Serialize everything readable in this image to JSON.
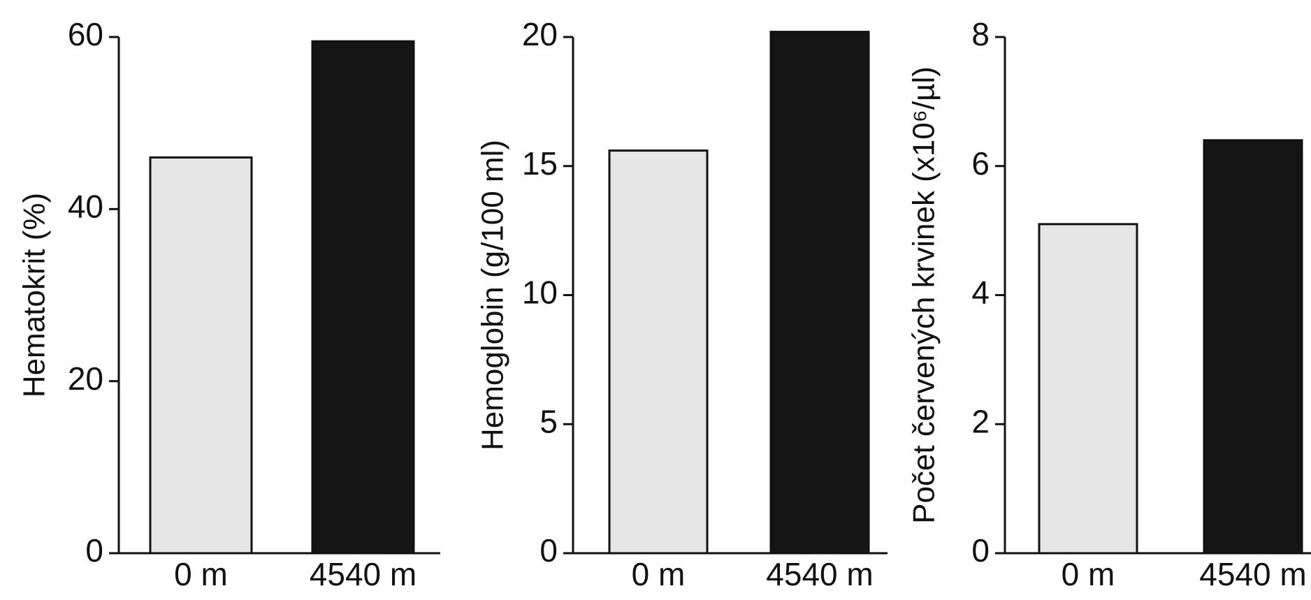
{
  "chart_data": [
    {
      "type": "bar",
      "categories": [
        "0 m",
        "4540 m"
      ],
      "values": [
        46,
        59.5
      ],
      "ylabel": "Hematokrit (%)",
      "ylim": [
        0,
        60
      ],
      "yticks": [
        "0",
        "20",
        "40",
        "60"
      ],
      "colors": [
        "#e6e6e6",
        "#151515"
      ],
      "grid": false
    },
    {
      "type": "bar",
      "categories": [
        "0 m",
        "4540 m"
      ],
      "values": [
        15.6,
        20.2
      ],
      "ylabel": "Hemoglobin (g/100 ml)",
      "ylim": [
        0,
        20
      ],
      "yticks": [
        "0",
        "5",
        "10",
        "15",
        "20"
      ],
      "colors": [
        "#e6e6e6",
        "#151515"
      ],
      "grid": false
    },
    {
      "type": "bar",
      "categories": [
        "0 m",
        "4540 m"
      ],
      "values": [
        5.1,
        6.4
      ],
      "ylabel": "Počet červených krvinek (x10⁶/µl)",
      "ylim": [
        0,
        8
      ],
      "yticks": [
        "0",
        "2",
        "4",
        "6",
        "8"
      ],
      "colors": [
        "#e6e6e6",
        "#151515"
      ],
      "grid": false
    }
  ]
}
